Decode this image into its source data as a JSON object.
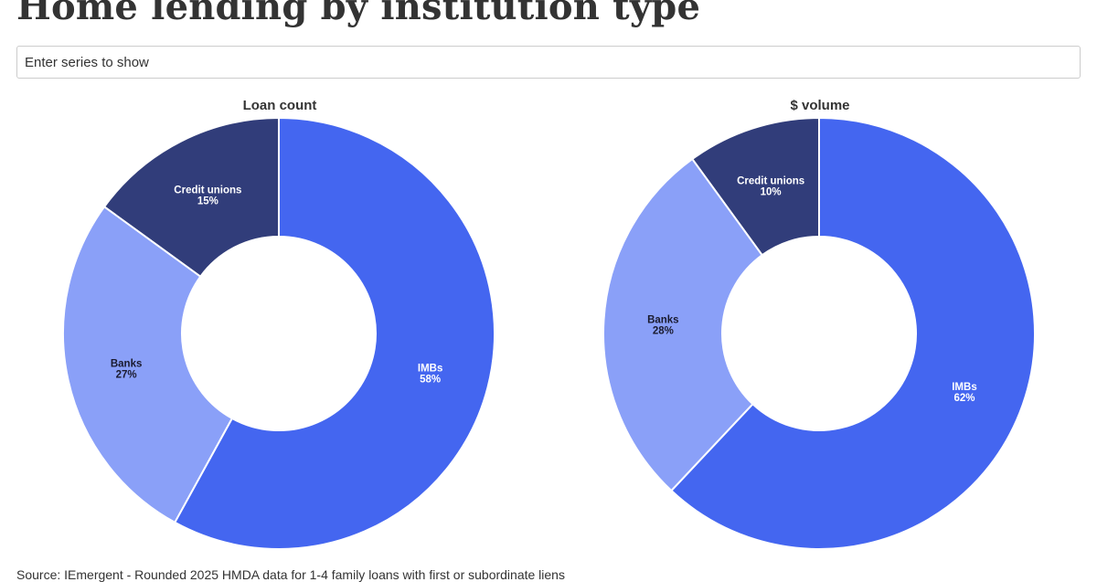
{
  "title": "Home lending by institution type",
  "search": {
    "placeholder": "Enter series to show"
  },
  "source": "Source: IEmergent - Rounded 2025 HMDA data for 1-4 family loans with first or subordinate liens",
  "colors": {
    "IMBs": "#4466f0",
    "Banks": "#8aa0f8",
    "Credit unions": "#313d7a",
    "label_on_dark": "#ffffff",
    "label_on_light": "#1a1a2e"
  },
  "chart_data": [
    {
      "type": "pie",
      "donut": true,
      "title": "Loan count",
      "categories": [
        "IMBs",
        "Banks",
        "Credit unions"
      ],
      "values": [
        58,
        27,
        15
      ],
      "labels": [
        "58%",
        "27%",
        "15%"
      ]
    },
    {
      "type": "pie",
      "donut": true,
      "title": "$ volume",
      "categories": [
        "IMBs",
        "Banks",
        "Credit unions"
      ],
      "values": [
        62,
        28,
        10
      ],
      "labels": [
        "62%",
        "28%",
        "10%"
      ]
    }
  ]
}
